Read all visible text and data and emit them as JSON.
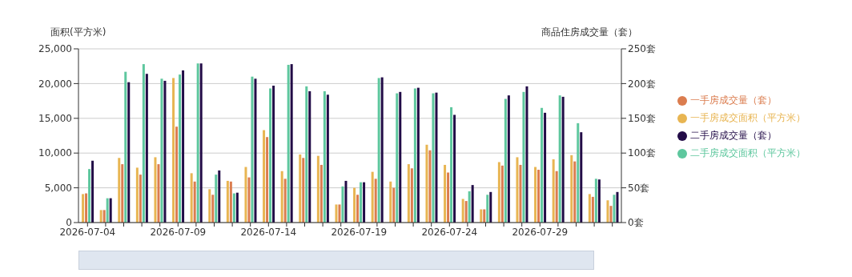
{
  "chart_data": {
    "type": "bar",
    "ylabel": "面积(平方米)",
    "y2label": "商品住房成交量（套）",
    "categories": [
      "2026-07-04",
      null,
      null,
      null,
      null,
      "2026-07-09",
      null,
      null,
      null,
      null,
      "2026-07-14",
      null,
      null,
      null,
      null,
      "2026-07-19",
      null,
      null,
      null,
      null,
      "2026-07-24",
      null,
      null,
      null,
      null,
      "2026-07-29",
      null,
      null,
      null,
      null
    ],
    "series": [
      {
        "name": "一手房成交面积（平方米）",
        "color": "#e8b552",
        "values": [
          4100,
          1800,
          9300,
          7900,
          9400,
          20800,
          7100,
          4800,
          6000,
          8000,
          13300,
          7400,
          9800,
          9600,
          2600,
          5000,
          7300,
          5900,
          8400,
          11200,
          8300,
          3400,
          1900,
          8700,
          9400,
          8000,
          9100,
          9700,
          4100,
          3200
        ]
      },
      {
        "name": "一手房成交量（套）",
        "color": "#db7d4f",
        "axis": "y2",
        "values": [
          42,
          18,
          84,
          69,
          84,
          138,
          59,
          40,
          59,
          65,
          123,
          63,
          93,
          83,
          26,
          40,
          63,
          50,
          78,
          104,
          72,
          31,
          19,
          82,
          83,
          76,
          74,
          88,
          37,
          24
        ]
      },
      {
        "name": "二手房成交面积（平方米）",
        "color": "#5ec79e",
        "values": [
          7700,
          3500,
          21700,
          22800,
          20700,
          21300,
          22900,
          6900,
          4200,
          21000,
          19300,
          22700,
          19600,
          18900,
          5200,
          5800,
          20800,
          18600,
          19300,
          18600,
          16600,
          4500,
          4000,
          17800,
          18800,
          16500,
          18300,
          14300,
          6300,
          4000
        ]
      },
      {
        "name": "二手房成交量（套）",
        "color": "#220c47",
        "axis": "y2",
        "values": [
          89,
          35,
          202,
          214,
          204,
          219,
          229,
          75,
          43,
          207,
          197,
          228,
          189,
          184,
          60,
          58,
          209,
          188,
          194,
          187,
          155,
          54,
          44,
          183,
          196,
          158,
          181,
          130,
          62,
          44
        ]
      }
    ],
    "ylim": [
      0,
      25000
    ],
    "yticks": [
      {
        "value": 0,
        "label": "0"
      },
      {
        "value": 5000,
        "label": "5,000"
      },
      {
        "value": 10000,
        "label": "10,000"
      },
      {
        "value": 15000,
        "label": "15,000"
      },
      {
        "value": 20000,
        "label": "20,000"
      },
      {
        "value": 25000,
        "label": "25,000"
      }
    ],
    "y2lim": [
      0,
      250
    ],
    "y2ticks": [
      {
        "value": 0,
        "label": "0套"
      },
      {
        "value": 50,
        "label": "50套"
      },
      {
        "value": 100,
        "label": "100套"
      },
      {
        "value": 150,
        "label": "150套"
      },
      {
        "value": 200,
        "label": "200套"
      },
      {
        "value": 250,
        "label": "250套"
      }
    ],
    "grid": "y",
    "legend": "right"
  }
}
